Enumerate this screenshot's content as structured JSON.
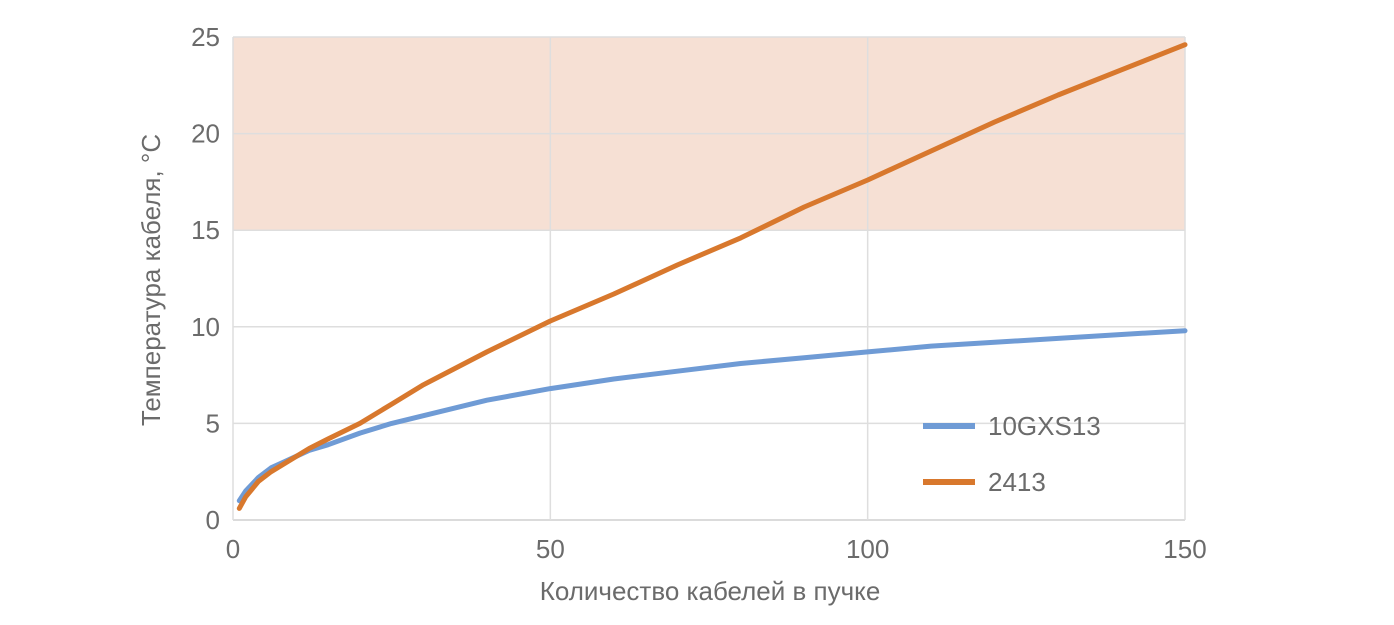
{
  "chart_data": {
    "type": "line",
    "xlabel": "Количество кабелей в пучке",
    "ylabel": "Температура кабеля, °C",
    "xlim": [
      0,
      150
    ],
    "ylim": [
      0,
      25
    ],
    "xticks": [
      0,
      50,
      100,
      150
    ],
    "yticks": [
      0,
      5,
      10,
      15,
      20,
      25
    ],
    "grid": true,
    "legend_position": "right",
    "highlight_band": {
      "y_from": 15,
      "y_to": 25,
      "color": "#f6e0d4"
    },
    "series": [
      {
        "name": "10GXS13",
        "color": "#6f9bd5",
        "x": [
          1,
          2,
          4,
          6,
          8,
          10,
          12,
          15,
          20,
          25,
          30,
          40,
          50,
          60,
          70,
          80,
          90,
          100,
          110,
          120,
          130,
          140,
          150
        ],
        "y": [
          1.0,
          1.5,
          2.2,
          2.7,
          3.0,
          3.3,
          3.6,
          3.9,
          4.5,
          5.0,
          5.4,
          6.2,
          6.8,
          7.3,
          7.7,
          8.1,
          8.4,
          8.7,
          9.0,
          9.2,
          9.4,
          9.6,
          9.8
        ]
      },
      {
        "name": "2413",
        "color": "#d8782d",
        "x": [
          1,
          2,
          4,
          6,
          8,
          10,
          12,
          15,
          20,
          25,
          30,
          40,
          50,
          60,
          70,
          80,
          90,
          100,
          110,
          120,
          130,
          140,
          150
        ],
        "y": [
          0.6,
          1.2,
          2.0,
          2.5,
          2.9,
          3.3,
          3.7,
          4.2,
          5.0,
          6.0,
          7.0,
          8.7,
          10.3,
          11.7,
          13.2,
          14.6,
          16.2,
          17.6,
          19.1,
          20.6,
          22.0,
          23.3,
          24.6
        ]
      }
    ]
  }
}
